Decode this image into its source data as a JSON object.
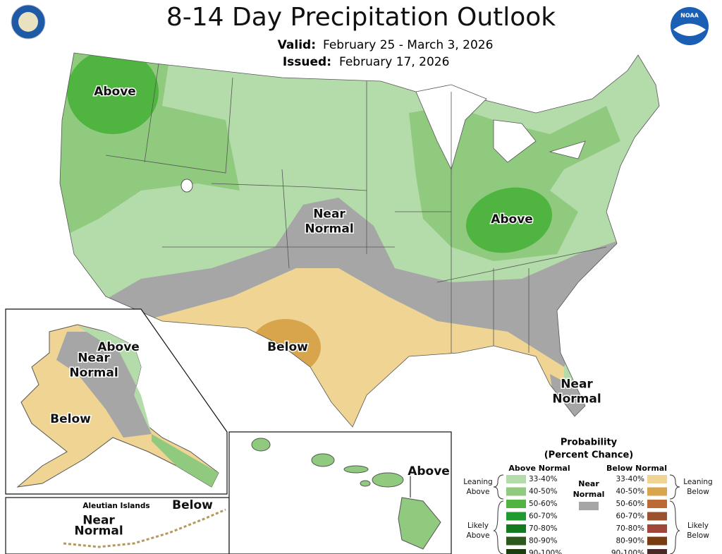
{
  "header": {
    "title": "8-14 Day Precipitation Outlook",
    "valid_label": "Valid:",
    "valid": "February 25 - March 3, 2026",
    "issued_label": "Issued:",
    "issued": "February 17, 2026",
    "noaa": "NOAA"
  },
  "map_labels": [
    {
      "lines": [
        "Above"
      ]
    },
    {
      "lines": [
        "Near",
        "Normal"
      ]
    },
    {
      "lines": [
        "Above"
      ]
    },
    {
      "lines": [
        "Below"
      ]
    },
    {
      "lines": [
        "Near",
        "Normal"
      ]
    },
    {
      "lines": [
        "Above"
      ]
    },
    {
      "lines": [
        "Near",
        "Normal"
      ]
    },
    {
      "lines": [
        "Below"
      ]
    },
    {
      "lines": [
        "Above"
      ]
    },
    {
      "lines": [
        "Near",
        "Normal"
      ]
    },
    {
      "lines": [
        "Below"
      ]
    }
  ],
  "insets": {
    "aleutian": "Aleutian Islands"
  },
  "legend": {
    "title": [
      "Probability",
      "(Percent Chance)"
    ],
    "above_header": "Above Normal",
    "below_header": "Below Normal",
    "near": [
      "Near",
      "Normal"
    ],
    "near_color": "#a6a6a6",
    "leaning_above": [
      "Leaning",
      "Above"
    ],
    "likely_above": [
      "Likely",
      "Above"
    ],
    "leaning_below": [
      "Leaning",
      "Below"
    ],
    "likely_below": [
      "Likely",
      "Below"
    ],
    "above": [
      {
        "range": "33-40%",
        "color": "#b4dcab"
      },
      {
        "range": "40-50%",
        "color": "#8fca7e"
      },
      {
        "range": "50-60%",
        "color": "#4fb540"
      },
      {
        "range": "60-70%",
        "color": "#1f9a2e"
      },
      {
        "range": "70-80%",
        "color": "#137a22"
      },
      {
        "range": "80-90%",
        "color": "#2b5a1c"
      },
      {
        "range": "90-100%",
        "color": "#1c3d0e"
      }
    ],
    "below": [
      {
        "range": "33-40%",
        "color": "#f0d493"
      },
      {
        "range": "40-50%",
        "color": "#d8a44c"
      },
      {
        "range": "50-60%",
        "color": "#bb6a33"
      },
      {
        "range": "60-70%",
        "color": "#9b5030"
      },
      {
        "range": "70-80%",
        "color": "#a0463b"
      },
      {
        "range": "80-90%",
        "color": "#7a3d10"
      },
      {
        "range": "90-100%",
        "color": "#4a2a26"
      }
    ]
  }
}
